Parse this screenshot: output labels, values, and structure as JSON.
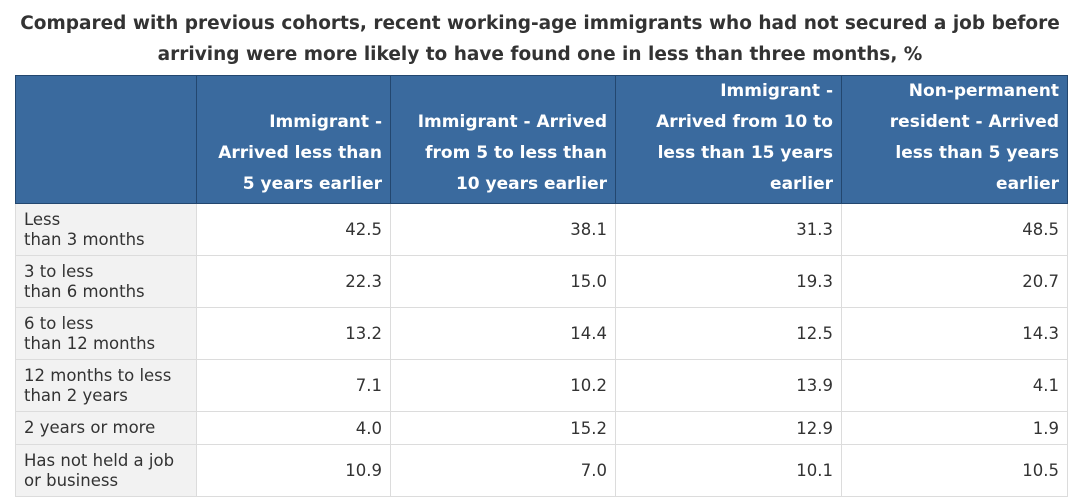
{
  "title": "Compared with previous cohorts, recent working-age immigrants who had not secured a job before arriving were more likely to have found one in less than three months, %",
  "table": {
    "columns": [
      "",
      "Immigrant - Arrived less than 5 years earlier",
      "Immigrant - Arrived from 5 to less than 10 years earlier",
      "Immigrant - Arrived from 10 to less than 15 years earlier",
      "Non-permanent resident - Arrived less than 5 years earlier"
    ],
    "rows": [
      {
        "label": "Less than 3 months",
        "values": [
          "42.5",
          "38.1",
          "31.3",
          "48.5"
        ]
      },
      {
        "label": "3 to less than 6 months",
        "values": [
          "22.3",
          "15.0",
          "19.3",
          "20.7"
        ]
      },
      {
        "label": "6 to less than 12 months",
        "values": [
          "13.2",
          "14.4",
          "12.5",
          "14.3"
        ]
      },
      {
        "label": "12 months to less than 2 years",
        "values": [
          "7.1",
          "10.2",
          "13.9",
          "4.1"
        ]
      },
      {
        "label": "2 years or more",
        "values": [
          "4.0",
          "15.2",
          "12.9",
          "1.9"
        ]
      },
      {
        "label": "Has not held a job or business",
        "values": [
          "10.9",
          "7.0",
          "10.1",
          "10.5"
        ]
      }
    ]
  },
  "colors": {
    "header_bg": "#3a6a9e",
    "row_header_bg": "#f2f2f2"
  }
}
